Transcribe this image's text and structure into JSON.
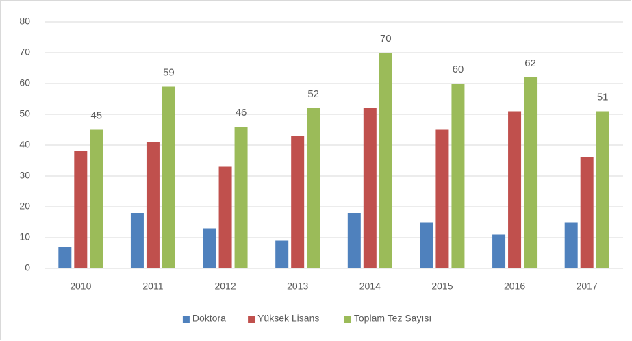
{
  "chart_data": {
    "type": "bar",
    "categories": [
      "2010",
      "2011",
      "2012",
      "2013",
      "2014",
      "2015",
      "2016",
      "2017"
    ],
    "series": [
      {
        "name": "Doktora",
        "color": "#4f81bd",
        "values": [
          7,
          18,
          13,
          9,
          18,
          15,
          11,
          15
        ]
      },
      {
        "name": "Yüksek Lisans",
        "color": "#c0504d",
        "values": [
          38,
          41,
          33,
          43,
          52,
          45,
          51,
          36
        ]
      },
      {
        "name": "Toplam Tez Sayısı",
        "color": "#9bbb59",
        "values": [
          45,
          59,
          46,
          52,
          70,
          60,
          62,
          51
        ],
        "data_labels": true
      }
    ],
    "ylim": [
      0,
      80
    ],
    "yticks": [
      0,
      10,
      20,
      30,
      40,
      50,
      60,
      70,
      80
    ],
    "grid": true,
    "legend": "bottom"
  }
}
